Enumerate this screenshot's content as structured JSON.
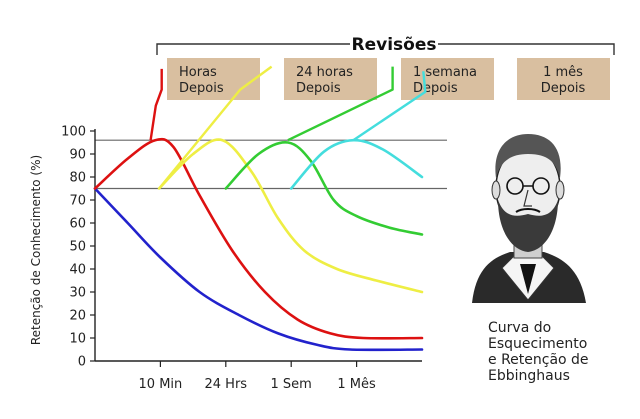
{
  "chart_data": {
    "type": "line",
    "ylabel": "Retenção de Conhecimento (%)",
    "xlabel": "",
    "ylim": [
      0,
      100
    ],
    "yticks": [
      0,
      10,
      20,
      30,
      40,
      50,
      60,
      70,
      80,
      90,
      100
    ],
    "xlim": [
      0,
      5
    ],
    "xticks": [
      {
        "x": 1,
        "label": "10 Min"
      },
      {
        "x": 2,
        "label": "24 Hrs"
      },
      {
        "x": 3,
        "label": "1 Sem"
      },
      {
        "x": 4,
        "label": "1 Mês"
      }
    ],
    "reference_lines": [
      75,
      96
    ],
    "series": [
      {
        "color": "#2222cc",
        "points": [
          [
            0,
            75
          ],
          [
            0.5,
            60
          ],
          [
            1,
            45
          ],
          [
            1.6,
            30
          ],
          [
            2.2,
            20
          ],
          [
            2.8,
            12
          ],
          [
            3.4,
            7
          ],
          [
            3.9,
            5
          ],
          [
            5,
            5
          ]
        ]
      },
      {
        "color": "#dd1111",
        "points": [
          [
            0,
            75
          ],
          [
            0.5,
            88
          ],
          [
            0.92,
            96
          ],
          [
            1.2,
            93
          ],
          [
            1.6,
            72
          ],
          [
            2.1,
            48
          ],
          [
            2.6,
            30
          ],
          [
            3.1,
            18
          ],
          [
            3.6,
            12
          ],
          [
            4.1,
            10
          ],
          [
            5,
            10
          ]
        ]
      },
      {
        "color": "#eeee44",
        "points": [
          [
            0.98,
            75
          ],
          [
            1.5,
            90
          ],
          [
            1.95,
            96
          ],
          [
            2.4,
            82
          ],
          [
            2.8,
            62
          ],
          [
            3.2,
            48
          ],
          [
            3.7,
            40
          ],
          [
            4.3,
            35
          ],
          [
            5,
            30
          ]
        ]
      },
      {
        "color": "#33cc33",
        "points": [
          [
            2.0,
            75
          ],
          [
            2.5,
            90
          ],
          [
            2.95,
            95
          ],
          [
            3.3,
            87
          ],
          [
            3.65,
            70
          ],
          [
            4.0,
            63
          ],
          [
            4.5,
            58
          ],
          [
            5,
            55
          ]
        ]
      },
      {
        "color": "#44dddd",
        "points": [
          [
            3.0,
            75
          ],
          [
            3.5,
            91
          ],
          [
            3.95,
            96
          ],
          [
            4.4,
            92
          ],
          [
            5,
            80
          ]
        ]
      }
    ],
    "rising_markers": [
      {
        "color": "#dd1111",
        "points": [
          [
            0.85,
            96
          ],
          [
            0.93,
            111
          ],
          [
            1.02,
            118
          ],
          [
            1.02,
            127
          ]
        ]
      },
      {
        "color": "#eeee44",
        "points": [
          [
            0.98,
            75
          ],
          [
            2.22,
            118
          ],
          [
            2.7,
            128
          ]
        ]
      },
      {
        "color": "#33cc33",
        "points": [
          [
            2.95,
            96
          ],
          [
            4.55,
            118
          ],
          [
            4.55,
            128
          ]
        ]
      },
      {
        "color": "#44dddd",
        "points": [
          [
            3.95,
            96
          ],
          [
            5.05,
            117
          ],
          [
            5.02,
            126
          ]
        ]
      }
    ]
  },
  "revisoes_label": "Revisões",
  "review_boxes": [
    {
      "lines": [
        "Horas",
        "Depois"
      ],
      "color": "#d9bfa0"
    },
    {
      "lines": [
        "24 horas",
        "Depois"
      ],
      "color": "#d9bfa0"
    },
    {
      "lines": [
        "1 semana",
        "Depois"
      ],
      "color": "#d9bfa0"
    },
    {
      "lines": [
        "1 mês",
        "Depois"
      ],
      "color": "#d9bfa0"
    }
  ],
  "caption": [
    "Curva do",
    "Esquecimento",
    "e Retenção de",
    "Ebbinghaus"
  ]
}
